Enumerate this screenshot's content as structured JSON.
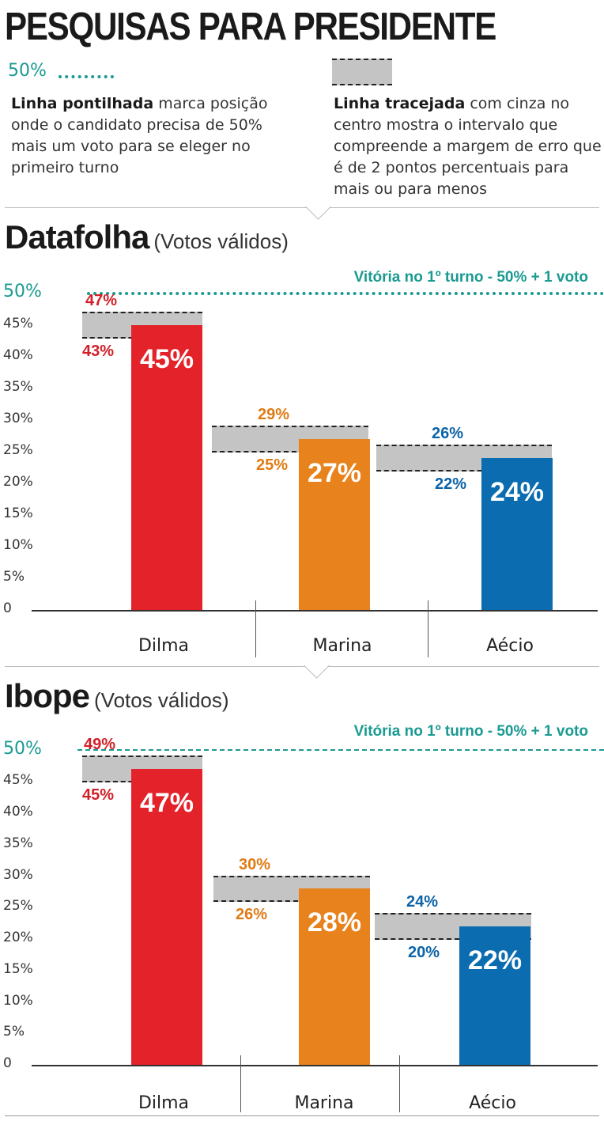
{
  "title": "PESQUISAS PARA PRESIDENTE",
  "legend": {
    "dotted_value": "50%",
    "dotted_bold": "Linha pontilhada",
    "dotted_text": " marca posição onde o candidato precisa de 50% mais um voto para se eleger no primeiro turno",
    "dashed_bold": "Linha tracejada",
    "dashed_text": " com cinza no centro mostra o intervalo que compreende a margem de erro que é de 2 pontos percentuais para mais ou para menos"
  },
  "colors": {
    "Dilma": "#e32229",
    "Marina": "#e8821c",
    "Aecio": "#0b6cb0",
    "threshold": "#1a9a92",
    "Dilma_label": "#d21f27",
    "Marina_label": "#e07b15",
    "Aecio_label": "#0b63a8"
  },
  "chart_data": [
    {
      "type": "bar",
      "title": "Datafolha",
      "subtitle": "(Votos válidos)",
      "threshold_label": "Vitória no 1º turno - 50% + 1 voto",
      "threshold": 50,
      "threshold_style": "dotted",
      "ylim": [
        0,
        50
      ],
      "yticks": [
        "0",
        "5%",
        "10%",
        "15%",
        "20%",
        "25%",
        "30%",
        "35%",
        "40%",
        "45%",
        "50%"
      ],
      "categories": [
        "Dilma",
        "Marina",
        "Aécio"
      ],
      "values": [
        45,
        27,
        24
      ],
      "value_labels": [
        "45%",
        "27%",
        "24%"
      ],
      "upper": [
        47,
        29,
        26
      ],
      "upper_labels": [
        "47%",
        "29%",
        "26%"
      ],
      "lower": [
        43,
        25,
        22
      ],
      "lower_labels": [
        "43%",
        "25%",
        "22%"
      ]
    },
    {
      "type": "bar",
      "title": "Ibope",
      "subtitle": "(Votos válidos)",
      "threshold_label": "Vitória no 1º turno - 50% + 1 voto",
      "threshold": 50,
      "threshold_style": "dashed",
      "ylim": [
        0,
        50
      ],
      "yticks": [
        "0",
        "5%",
        "10%",
        "15%",
        "20%",
        "25%",
        "30%",
        "35%",
        "40%",
        "45%",
        "50%"
      ],
      "categories": [
        "Dilma",
        "Marina",
        "Aécio"
      ],
      "values": [
        47,
        28,
        22
      ],
      "value_labels": [
        "47%",
        "28%",
        "22%"
      ],
      "upper": [
        49,
        30,
        24
      ],
      "upper_labels": [
        "49%",
        "30%",
        "24%"
      ],
      "lower": [
        45,
        26,
        20
      ],
      "lower_labels": [
        "45%",
        "26%",
        "20%"
      ]
    }
  ]
}
